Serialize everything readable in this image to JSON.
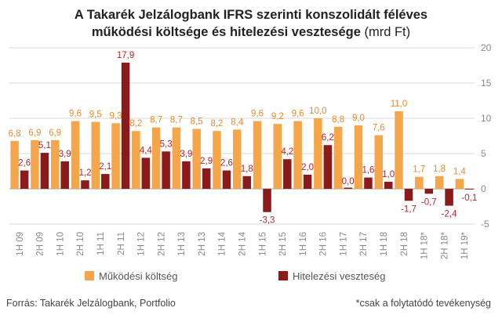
{
  "title": {
    "line1": "A Takarék Jelzálogbank IFRS szerinti konszolidált féléves",
    "line2_bold": "működési költsége és hitelezési vesztesége",
    "line2_unit": "(mrd Ft)"
  },
  "footer": {
    "source": "Forrás: Takarék Jelzálogbank, Portfolio",
    "note": "*csak a folytatódó tevékenység"
  },
  "colors": {
    "operating_cost": "#F5A54A",
    "credit_loss": "#8B1A1A",
    "cost_label": "#E98A2B",
    "loss_label": "#B0282A",
    "axis_text": "#888888",
    "grid": "#D9D9D9"
  },
  "chart_data": {
    "type": "bar",
    "categories": [
      "1H 09",
      "2H 09",
      "1H 10",
      "2H 10",
      "1H 11",
      "2H 11",
      "1H 12",
      "2H 12",
      "1H 13",
      "2H 13",
      "1H 14",
      "2H 14",
      "1H 15",
      "2H 15",
      "1H 16",
      "2H 16",
      "1H 17",
      "2H 17",
      "1H 18",
      "2H 18",
      "1H 18*",
      "2H 18*",
      "1H 19*"
    ],
    "series": [
      {
        "name": "Működési költség",
        "values": [
          6.8,
          6.9,
          6.9,
          9.6,
          9.5,
          9.3,
          8.2,
          8.7,
          8.7,
          8.5,
          8.2,
          8.4,
          9.6,
          9.2,
          9.6,
          10.0,
          8.8,
          9.0,
          7.6,
          11.0,
          1.7,
          1.8,
          1.4
        ],
        "labels": [
          "6,8",
          "6,9",
          "6,9",
          "9,6",
          "9,5",
          "9,3",
          "8,2",
          "8,7",
          "8,7",
          "8,5",
          "8,2",
          "8,4",
          "9,6",
          "9,2",
          "9,6",
          "10,0",
          "8,8",
          "9,0",
          "7,6",
          "11,0",
          "1,7",
          "1,8",
          "1,4"
        ]
      },
      {
        "name": "Hitelezési veszteség",
        "values": [
          2.6,
          5.1,
          3.9,
          1.2,
          2.1,
          17.9,
          4.4,
          5.3,
          3.9,
          2.9,
          2.6,
          1.8,
          -3.3,
          4.2,
          2.0,
          6.2,
          0.0,
          1.6,
          1.0,
          -1.7,
          -0.7,
          -2.4,
          -0.1
        ],
        "labels": [
          "2,6",
          "5,1",
          "3,9",
          "1,2",
          "2,1",
          "17,9",
          "4,4",
          "5,3",
          "3,9",
          "2,9",
          "2,6",
          "1,8",
          "-3,3",
          "4,2",
          "2,0",
          "6,2",
          "0,0",
          "1,6",
          "1,0",
          "-1,7",
          "-0,7",
          "-2,4",
          "-0,1"
        ]
      }
    ],
    "ylim": [
      -5,
      20
    ],
    "yticks": [
      -5,
      0,
      5,
      10,
      15,
      20
    ],
    "ytick_labels": [
      "-5",
      "0",
      "5",
      "10",
      "15",
      "20"
    ],
    "y_axis_side": "right",
    "grid": true,
    "legend_position": "bottom"
  }
}
